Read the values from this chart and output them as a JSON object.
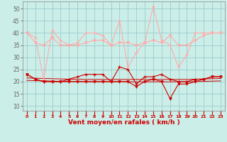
{
  "x": [
    0,
    1,
    2,
    3,
    4,
    5,
    6,
    7,
    8,
    9,
    10,
    11,
    12,
    13,
    14,
    15,
    16,
    17,
    18,
    19,
    20,
    21,
    22,
    23
  ],
  "rafales": [
    40,
    38,
    21,
    41,
    37,
    35,
    36,
    40,
    40,
    39,
    35,
    45,
    26,
    32,
    36,
    51,
    37,
    35,
    26,
    31,
    40,
    40,
    40,
    40
  ],
  "rafales2": [
    40,
    36,
    35,
    38,
    35,
    35,
    35,
    36,
    37,
    37,
    35,
    36,
    36,
    35,
    36,
    37,
    36,
    39,
    35,
    35,
    37,
    39,
    40,
    40
  ],
  "moyen1": [
    23,
    21,
    20,
    20,
    20,
    21,
    22,
    23,
    23,
    23,
    20,
    26,
    25,
    19,
    22,
    22,
    23,
    21,
    20,
    20,
    21,
    21,
    22,
    22
  ],
  "moyen2": [
    23,
    21,
    20,
    20,
    20,
    20,
    20,
    20,
    20,
    20,
    20,
    20,
    20,
    18,
    20,
    21,
    20,
    13,
    19,
    19,
    20,
    21,
    22,
    22
  ],
  "trend1": [
    20.5,
    20.4,
    20.3,
    20.2,
    20.1,
    20.0,
    20.0,
    19.9,
    19.9,
    19.9,
    19.9,
    19.9,
    19.9,
    19.9,
    19.9,
    19.9,
    19.9,
    19.9,
    19.9,
    19.9,
    20.0,
    20.1,
    20.2,
    20.3
  ],
  "trend2": [
    21.5,
    21.4,
    21.3,
    21.2,
    21.1,
    21.0,
    21.0,
    20.9,
    20.9,
    20.9,
    20.9,
    20.9,
    20.9,
    20.9,
    20.9,
    20.9,
    20.9,
    20.9,
    20.9,
    20.9,
    21.0,
    21.1,
    21.2,
    21.3
  ],
  "bg_color": "#cceee8",
  "grid_color": "#99cccc",
  "line_color_light": "#ffaaaa",
  "line_color_dark": "#cc0000",
  "xlabel": "Vent moyen/en rafales ( km/h )",
  "ylim": [
    8,
    53
  ],
  "yticks": [
    10,
    15,
    20,
    25,
    30,
    35,
    40,
    45,
    50
  ],
  "xlim": [
    -0.5,
    23.5
  ]
}
